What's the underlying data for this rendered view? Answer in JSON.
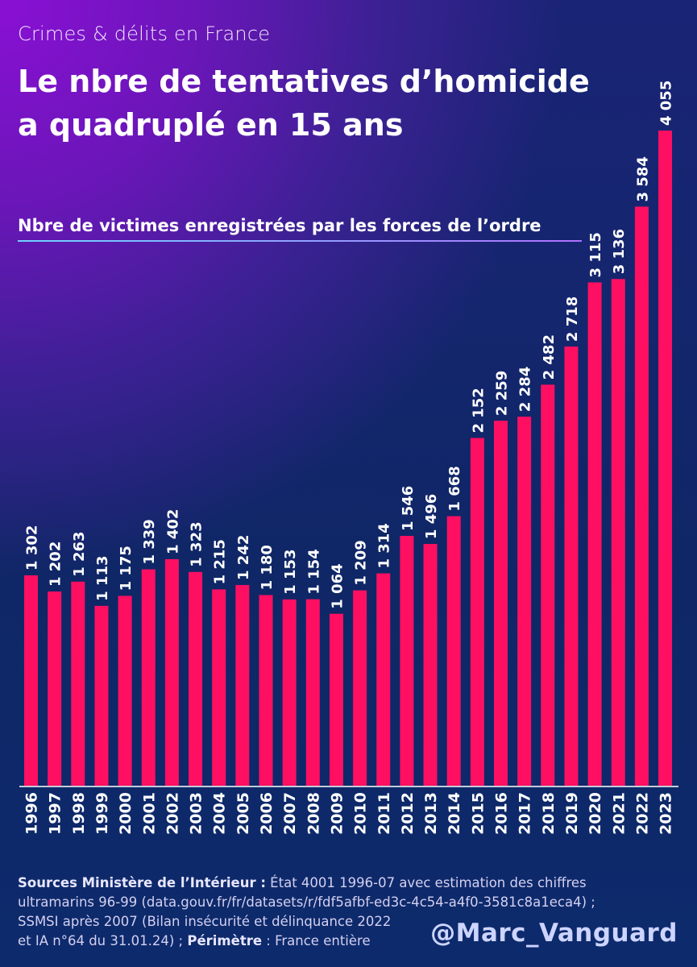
{
  "supertitle": "Crimes & délits en France",
  "title_line1": "Le nbre de tentatives d’homicide",
  "title_line2": "a quadruplé en 15 ans",
  "colors": {
    "bar": "#ff0f62",
    "text": "#ffffff",
    "baseline": "#ffffff"
  },
  "chart_data": {
    "type": "bar",
    "title": "Nbre de victimes enregistrées par les forces de l’ordre",
    "xlabel": "",
    "ylabel": "",
    "categories": [
      "1996",
      "1997",
      "1998",
      "1999",
      "2000",
      "2001",
      "2002",
      "2003",
      "2004",
      "2005",
      "2006",
      "2007",
      "2008",
      "2009",
      "2010",
      "2011",
      "2012",
      "2013",
      "2014",
      "2015",
      "2016",
      "2017",
      "2018",
      "2019",
      "2020",
      "2021",
      "2022",
      "2023"
    ],
    "values": [
      1302,
      1202,
      1263,
      1113,
      1175,
      1339,
      1402,
      1323,
      1215,
      1242,
      1180,
      1153,
      1154,
      1064,
      1209,
      1314,
      1546,
      1496,
      1668,
      2152,
      2259,
      2284,
      2482,
      2718,
      3115,
      3136,
      3584,
      4055
    ],
    "labels": [
      "1 302",
      "1 202",
      "1 263",
      "1 113",
      "1 175",
      "1 339",
      "1 402",
      "1 323",
      "1 215",
      "1 242",
      "1 180",
      "1 153",
      "1 154",
      "1 064",
      "1 209",
      "1 314",
      "1 546",
      "1 496",
      "1 668",
      "2 152",
      "2 259",
      "2 284",
      "2 482",
      "2 718",
      "3 115",
      "3 136",
      "3 584",
      "4 055"
    ],
    "ylim": [
      0,
      4055
    ],
    "grid": false
  },
  "footer": {
    "sources_label": "Sources Ministère de l’Intérieur :",
    "sources_text1": " État 4001 1996-07 avec estimation des chiffres",
    "line2": "ultramarins 96-99 (data.gouv.fr/fr/datasets/r/fdf5afbf-ed3c-4c54-a4f0-3581c8a1eca4) ;",
    "line3": "SSMSI après 2007 (Bilan insécurité et délinquance 2022",
    "line4a": "et IA n°64 du 31.01.24) ; ",
    "perimetre_label": "Périmètre",
    "perimetre_text": " : France entière"
  },
  "handle": "@Marc_Vanguard"
}
